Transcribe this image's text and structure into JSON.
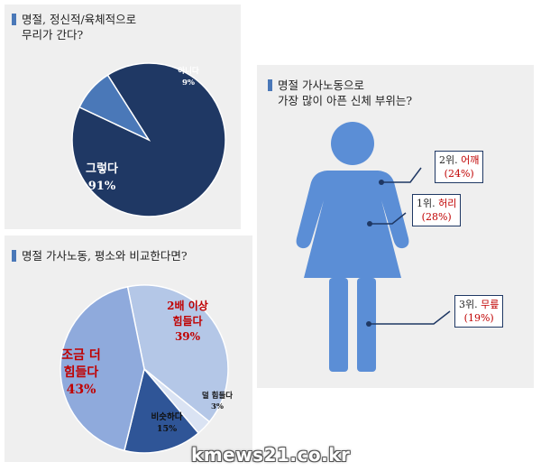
{
  "colors": {
    "navy": "#1f3864",
    "blue": "#4a78b8",
    "light_blue": "#b4c7e7",
    "mid_blue": "#8faadc",
    "red": "#c00000",
    "figure": "#5b8ed6"
  },
  "chart_data": [
    {
      "type": "pie",
      "title": "명절, 정신적/육체적으로\n무리가 간다?",
      "slices": [
        {
          "label": "그렇다",
          "value": 91,
          "value_label": "91%",
          "color": "#1f3864"
        },
        {
          "label": "아니다",
          "value": 9,
          "value_label": "9%",
          "color": "#4a78b8"
        }
      ]
    },
    {
      "type": "pie",
      "title": "명절 가사노동, 평소와 비교한다면?",
      "slices": [
        {
          "label": "2배 이상\n힘들다",
          "value": 39,
          "value_label": "39%",
          "color": "#b4c7e7"
        },
        {
          "label": "덜 힘들다",
          "value": 3,
          "value_label": "3%",
          "color": "#dae3f3"
        },
        {
          "label": "비슷하다",
          "value": 15,
          "value_label": "15%",
          "color": "#2f5597"
        },
        {
          "label": "조금 더\n힘들다",
          "value": 43,
          "value_label": "43%",
          "color": "#8faadc"
        }
      ]
    }
  ],
  "body_chart": {
    "title": "명절 가사노동으로\n가장 많이 아픈 신체 부위는?",
    "items": [
      {
        "rank": "2위.",
        "part": "어깨",
        "pct": "(24%)"
      },
      {
        "rank": "1위.",
        "part": "허리",
        "pct": "(28%)"
      },
      {
        "rank": "3위.",
        "part": "무릎",
        "pct": "(19%)"
      }
    ]
  },
  "watermark": "kmews21.co.kr"
}
